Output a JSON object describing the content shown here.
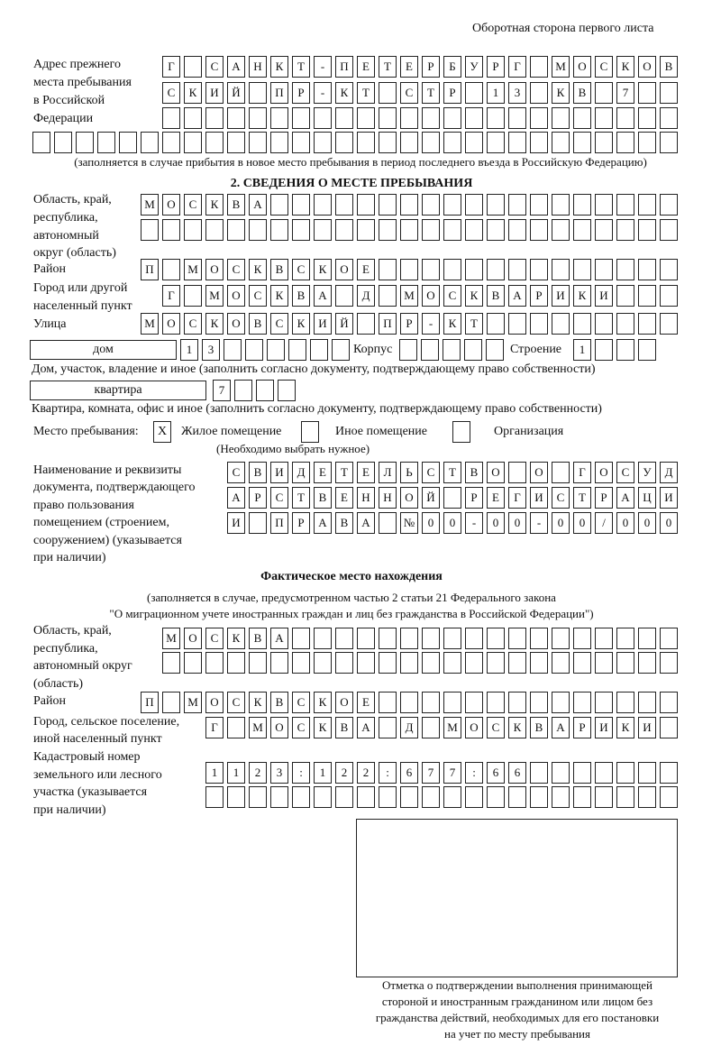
{
  "header": "Оборотная сторона первого листа",
  "prev_address": {
    "label": [
      "Адрес прежнего",
      "места пребывания",
      "в Российской",
      "Федерации"
    ],
    "rows": [
      [
        "Г",
        "",
        "С",
        "А",
        "Н",
        "К",
        "Т",
        "-",
        "П",
        "Е",
        "Т",
        "Е",
        "Р",
        "Б",
        "У",
        "Р",
        "Г",
        "",
        "М",
        "О",
        "С",
        "К",
        "О",
        "В"
      ],
      [
        "С",
        "К",
        "И",
        "Й",
        "",
        "П",
        "Р",
        "-",
        "К",
        "Т",
        "",
        "С",
        "Т",
        "Р",
        "",
        "1",
        "3",
        "",
        "К",
        "В",
        "",
        "7",
        "",
        ""
      ],
      [
        "",
        "",
        "",
        "",
        "",
        "",
        "",
        "",
        "",
        "",
        "",
        "",
        "",
        "",
        "",
        "",
        "",
        "",
        "",
        "",
        "",
        "",
        "",
        ""
      ],
      [
        "",
        "",
        "",
        "",
        "",
        "",
        "",
        "",
        "",
        "",
        "",
        "",
        "",
        "",
        "",
        "",
        "",
        "",
        "",
        "",
        "",
        "",
        "",
        "",
        "",
        "",
        "",
        "",
        "",
        ""
      ]
    ],
    "note": "(заполняется в случае прибытия в новое место пребывания в период последнего въезда в Российскую Федерацию)"
  },
  "section2": {
    "title": "2. СВЕДЕНИЯ О МЕСТЕ ПРЕБЫВАНИЯ",
    "region_label": [
      "Область, край,",
      "республика,",
      "автономный",
      "округ (область)"
    ],
    "region_rows": [
      [
        "М",
        "О",
        "С",
        "К",
        "В",
        "А",
        "",
        "",
        "",
        "",
        "",
        "",
        "",
        "",
        "",
        "",
        "",
        "",
        "",
        "",
        "",
        "",
        "",
        "",
        ""
      ],
      [
        "",
        "",
        "",
        "",
        "",
        "",
        "",
        "",
        "",
        "",
        "",
        "",
        "",
        "",
        "",
        "",
        "",
        "",
        "",
        "",
        "",
        "",
        "",
        "",
        ""
      ]
    ],
    "district_label": "Район",
    "district": [
      "П",
      "",
      "М",
      "О",
      "С",
      "К",
      "В",
      "С",
      "К",
      "О",
      "Е",
      "",
      "",
      "",
      "",
      "",
      "",
      "",
      "",
      "",
      "",
      "",
      "",
      "",
      ""
    ],
    "city_label": [
      "Город или другой",
      "населенный пункт"
    ],
    "city": [
      "Г",
      "",
      "М",
      "О",
      "С",
      "К",
      "В",
      "А",
      "",
      "Д",
      "",
      "М",
      "О",
      "С",
      "К",
      "В",
      "А",
      "Р",
      "И",
      "К",
      "И",
      "",
      "",
      ""
    ],
    "street_label": "Улица",
    "street": [
      "М",
      "О",
      "С",
      "К",
      "О",
      "В",
      "С",
      "К",
      "И",
      "Й",
      "",
      "П",
      "Р",
      "-",
      "К",
      "Т",
      "",
      "",
      "",
      "",
      "",
      "",
      "",
      "",
      ""
    ],
    "house_type": "дом",
    "house": [
      "1",
      "3",
      "",
      "",
      "",
      "",
      "",
      ""
    ],
    "korpus_label": "Корпус",
    "korpus": [
      "",
      "",
      "",
      "",
      ""
    ],
    "stroenie_label": "Строение",
    "stroenie": [
      "1",
      "",
      "",
      ""
    ],
    "house_note": "Дом, участок, владение и иное (заполнить согласно документу, подтверждающему право собственности)",
    "apt_type": "квартира",
    "apt": [
      "7",
      "",
      "",
      ""
    ],
    "apt_note": "Квартира, комната, офис и иное (заполнить согласно документу, подтверждающему право собственности)",
    "stay_label": "Место пребывания:",
    "stay_options": [
      {
        "mark": "X",
        "label": "Жилое помещение"
      },
      {
        "mark": "",
        "label": "Иное помещение"
      },
      {
        "mark": "",
        "label": "Организация"
      }
    ],
    "stay_note": "(Необходимо выбрать нужное)",
    "doc_label": [
      "Наименование и реквизиты",
      "документа, подтверждающего",
      "право пользования",
      "помещением (строением,",
      "сооружением) (указывается",
      "при наличии)"
    ],
    "doc_rows": [
      [
        "С",
        "В",
        "И",
        "Д",
        "Е",
        "Т",
        "Е",
        "Л",
        "Ь",
        "С",
        "Т",
        "В",
        "О",
        "",
        "О",
        "",
        "Г",
        "О",
        "С",
        "У",
        "Д"
      ],
      [
        "А",
        "Р",
        "С",
        "Т",
        "В",
        "Е",
        "Н",
        "Н",
        "О",
        "Й",
        "",
        "Р",
        "Е",
        "Г",
        "И",
        "С",
        "Т",
        "Р",
        "А",
        "Ц",
        "И"
      ],
      [
        "И",
        "",
        "П",
        "Р",
        "А",
        "В",
        "А",
        "",
        "№",
        "0",
        "0",
        "-",
        "0",
        "0",
        "-",
        "0",
        "0",
        "/",
        "0",
        "0",
        "0"
      ]
    ]
  },
  "actual": {
    "title": "Фактическое место нахождения",
    "note": [
      "(заполняется в случае, предусмотренном частью 2 статьи 21 Федерального закона",
      "\"О миграционном учете иностранных граждан и лиц без гражданства в Российской Федерации\")"
    ],
    "region_label": [
      "Область, край,",
      "республика,",
      "автономный округ",
      "(область)"
    ],
    "region_rows": [
      [
        "М",
        "О",
        "С",
        "К",
        "В",
        "А",
        "",
        "",
        "",
        "",
        "",
        "",
        "",
        "",
        "",
        "",
        "",
        "",
        "",
        "",
        "",
        "",
        "",
        ""
      ],
      [
        "",
        "",
        "",
        "",
        "",
        "",
        "",
        "",
        "",
        "",
        "",
        "",
        "",
        "",
        "",
        "",
        "",
        "",
        "",
        "",
        "",
        "",
        "",
        ""
      ]
    ],
    "district_label": "Район",
    "district": [
      "П",
      "",
      "М",
      "О",
      "С",
      "К",
      "В",
      "С",
      "К",
      "О",
      "Е",
      "",
      "",
      "",
      "",
      "",
      "",
      "",
      "",
      "",
      "",
      "",
      "",
      "",
      ""
    ],
    "city_label": [
      "Город, сельское поселение,",
      "иной населенный пункт"
    ],
    "city": [
      "Г",
      "",
      "М",
      "О",
      "С",
      "К",
      "В",
      "А",
      "",
      "Д",
      "",
      "М",
      "О",
      "С",
      "К",
      "В",
      "А",
      "Р",
      "И",
      "К",
      "И",
      ""
    ],
    "cadastre_label": [
      "Кадастровый номер",
      "земельного или лесного",
      "участка (указывается",
      "при наличии)"
    ],
    "cadastre_rows": [
      [
        "1",
        "1",
        "2",
        "3",
        ":",
        "1",
        "2",
        "2",
        ":",
        "6",
        "7",
        "7",
        ":",
        "6",
        "6",
        "",
        "",
        "",
        "",
        "",
        "",
        ""
      ],
      [
        "",
        "",
        "",
        "",
        "",
        "",
        "",
        "",
        "",
        "",
        "",
        "",
        "",
        "",
        "",
        "",
        "",
        "",
        "",
        "",
        "",
        ""
      ]
    ]
  },
  "confirmation_caption": [
    "Отметка о подтверждении выполнения принимающей",
    "стороной и иностранным гражданином или лицом без",
    "гражданства действий, необходимых для его постановки",
    "на учет по месту пребывания"
  ]
}
